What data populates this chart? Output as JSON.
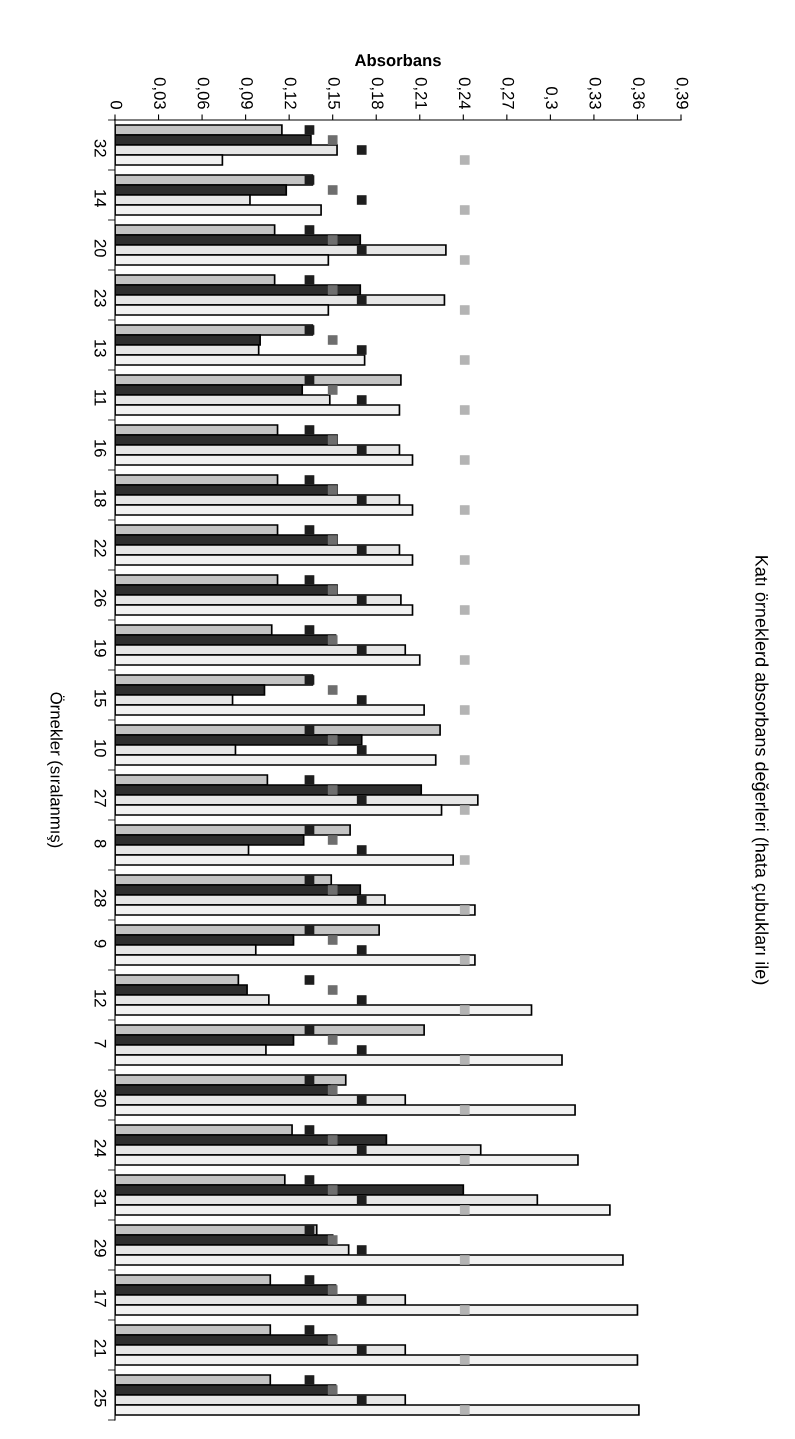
{
  "chart_data": {
    "type": "bar",
    "orientation": "horizontal",
    "title": "Katı örneklerd absorbans değerleri (hata çubukları ile)",
    "xlabel": "Absorbans",
    "ylabel": "Örnekler (sıralanmış)",
    "categories": [
      "32",
      "14",
      "20",
      "23",
      "13",
      "11",
      "16",
      "18",
      "22",
      "26",
      "19",
      "15",
      "10",
      "27",
      "8",
      "28",
      "9",
      "12",
      "7",
      "30",
      "24",
      "31",
      "29",
      "17",
      "21",
      "25"
    ],
    "series": [
      {
        "color": "#c4c4c4",
        "values": [
          0.115,
          0.136,
          0.11,
          0.11,
          0.136,
          0.197,
          0.112,
          0.112,
          0.112,
          0.112,
          0.108,
          0.136,
          0.224,
          0.105,
          0.162,
          0.149,
          0.182,
          0.085,
          0.213,
          0.159,
          0.122,
          0.117,
          0.139,
          0.107,
          0.107,
          0.107
        ]
      },
      {
        "color": "#2e2e2e",
        "values": [
          0.135,
          0.118,
          0.169,
          0.169,
          0.1,
          0.129,
          0.153,
          0.153,
          0.153,
          0.153,
          0.152,
          0.103,
          0.17,
          0.211,
          0.13,
          0.169,
          0.123,
          0.091,
          0.123,
          0.148,
          0.187,
          0.24,
          0.15,
          0.152,
          0.152,
          0.152
        ]
      },
      {
        "color": "#e6e6e6",
        "values": [
          0.153,
          0.093,
          0.228,
          0.227,
          0.099,
          0.148,
          0.196,
          0.196,
          0.196,
          0.197,
          0.2,
          0.081,
          0.083,
          0.25,
          0.092,
          0.186,
          0.097,
          0.106,
          0.104,
          0.2,
          0.252,
          0.291,
          0.161,
          0.2,
          0.2,
          0.2
        ]
      },
      {
        "color": "#f2f2f2",
        "values": [
          0.074,
          0.142,
          0.147,
          0.147,
          0.172,
          0.196,
          0.205,
          0.205,
          0.205,
          0.205,
          0.21,
          0.213,
          0.221,
          0.225,
          0.233,
          0.248,
          0.248,
          0.287,
          0.308,
          0.317,
          0.319,
          0.341,
          0.35,
          0.36,
          0.36,
          0.361
        ]
      },
      {
        "type": "scatter",
        "marker": "square",
        "color": "#1e1e1e",
        "x": [
          "32",
          "14",
          "20",
          "23",
          "13",
          "11",
          "16",
          "18",
          "22",
          "26",
          "19",
          "15",
          "10",
          "27",
          "8",
          "28",
          "9",
          "12",
          "7",
          "30",
          "24",
          "31",
          "29",
          "17",
          "21",
          "25"
        ],
        "values": [
          0.134,
          0.134,
          0.134,
          0.134,
          0.134,
          0.134,
          0.134,
          0.134,
          0.134,
          0.134,
          0.134,
          0.134,
          0.134,
          0.134,
          0.134,
          0.134,
          0.134,
          0.134,
          0.134,
          0.134,
          0.134,
          0.134,
          0.134,
          0.134,
          0.134,
          0.134
        ]
      },
      {
        "type": "scatter",
        "marker": "square",
        "color": "#6e6e6e",
        "x": [
          "32",
          "14",
          "20",
          "23",
          "13",
          "11",
          "16",
          "18",
          "22",
          "26",
          "19",
          "15",
          "10",
          "27",
          "8",
          "28",
          "9",
          "12",
          "7",
          "30",
          "24",
          "31",
          "29",
          "17",
          "21",
          "25"
        ],
        "values": [
          0.15,
          0.15,
          0.15,
          0.15,
          0.15,
          0.15,
          0.15,
          0.15,
          0.15,
          0.15,
          0.15,
          0.15,
          0.15,
          0.15,
          0.15,
          0.15,
          0.15,
          0.15,
          0.15,
          0.15,
          0.15,
          0.15,
          0.15,
          0.15,
          0.15,
          0.15
        ]
      },
      {
        "type": "scatter",
        "marker": "square",
        "color": "#1e1e1e",
        "x": [
          "32",
          "14",
          "20",
          "23",
          "13",
          "11",
          "16",
          "18",
          "22",
          "26",
          "19",
          "15",
          "10",
          "27",
          "8",
          "28",
          "9",
          "12",
          "7",
          "30",
          "24",
          "31",
          "29",
          "17",
          "21",
          "25"
        ],
        "values": [
          0.17,
          0.17,
          0.17,
          0.17,
          0.17,
          0.17,
          0.17,
          0.17,
          0.17,
          0.17,
          0.17,
          0.17,
          0.17,
          0.17,
          0.17,
          0.17,
          0.17,
          0.17,
          0.17,
          0.17,
          0.17,
          0.17,
          0.17,
          0.17,
          0.17,
          0.17
        ]
      },
      {
        "type": "scatter",
        "marker": "square",
        "color": "#b4b4b4",
        "x": [
          "32",
          "14",
          "20",
          "23",
          "13",
          "11",
          "16",
          "18",
          "22",
          "26",
          "19",
          "15",
          "10",
          "27",
          "8",
          "28",
          "9",
          "12",
          "7",
          "30",
          "24",
          "31",
          "29",
          "17",
          "21",
          "25"
        ],
        "values": [
          0.241,
          0.241,
          0.241,
          0.241,
          0.241,
          0.241,
          0.241,
          0.241,
          0.241,
          0.241,
          0.241,
          0.241,
          0.241,
          0.241,
          0.241,
          0.241,
          0.241,
          0.241,
          0.241,
          0.241,
          0.241,
          0.241,
          0.241,
          0.241,
          0.241,
          0.241
        ]
      }
    ],
    "xlim": [
      0,
      0.39
    ],
    "xticks": [
      0,
      {
        "value": 0.03,
        "label": "0,03"
      },
      {
        "value": 0.06,
        "label": "0,06"
      },
      {
        "value": 0.09,
        "label": "0,09"
      },
      {
        "value": 0.12,
        "label": "0,12"
      },
      {
        "value": 0.15,
        "label": "0,15"
      },
      {
        "value": 0.18,
        "label": "0,18"
      },
      {
        "value": 0.21,
        "label": "0,21"
      },
      {
        "value": 0.24,
        "label": "0,24"
      },
      {
        "value": 0.27,
        "label": "0,27"
      },
      {
        "value": 0.3,
        "label": "0,3"
      },
      {
        "value": 0.33,
        "label": "0,33"
      },
      {
        "value": 0.36,
        "label": "0,36"
      },
      {
        "value": 0.39,
        "label": "0,39"
      }
    ],
    "grid": false,
    "legend": false
  }
}
